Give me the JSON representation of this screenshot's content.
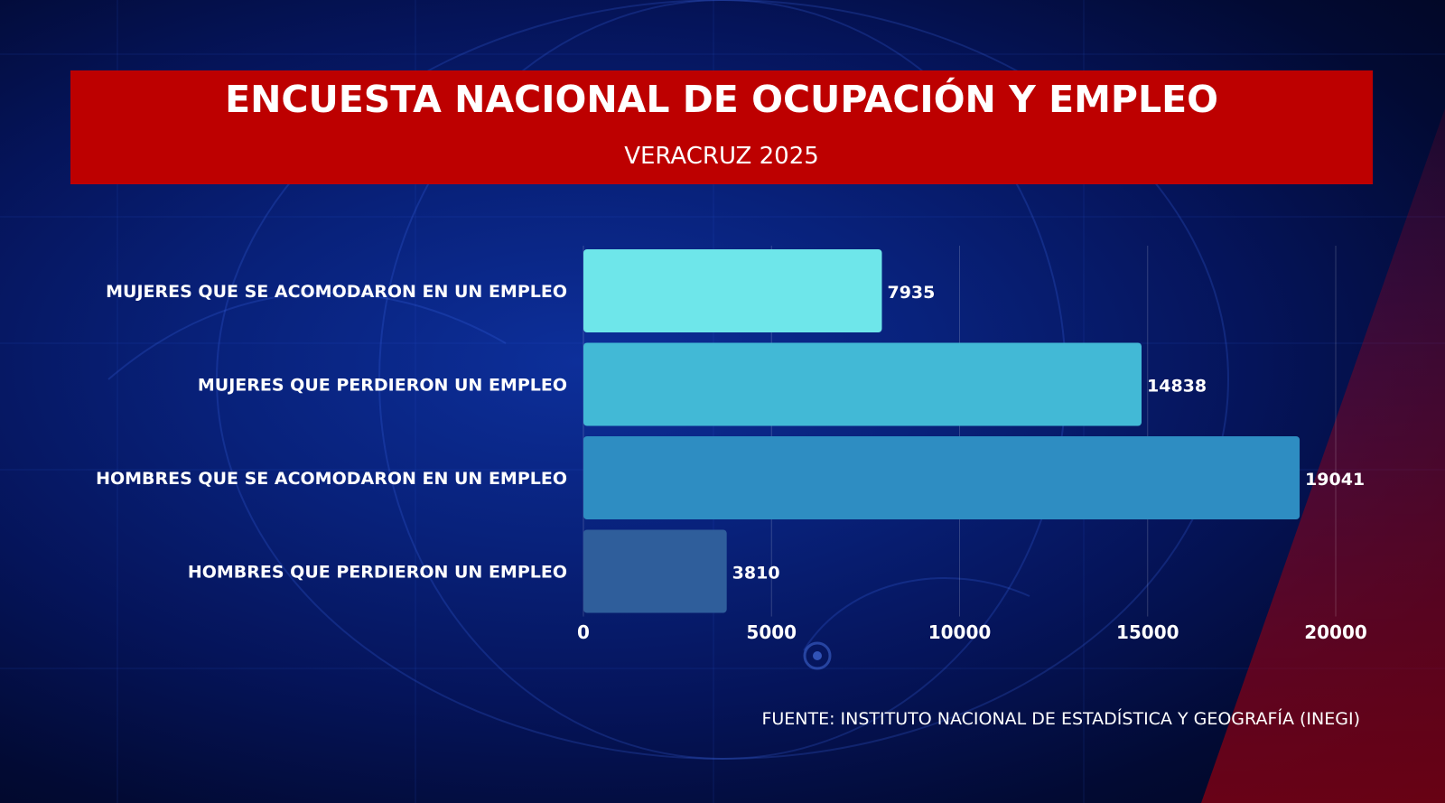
{
  "header": {
    "title": "ENCUESTA NACIONAL DE OCUPACIÓN Y EMPLEO",
    "subtitle": "VERACRUZ 2025"
  },
  "source": "FUENTE: INSTITUTO NACIONAL DE ESTADÍSTICA Y GEOGRAFÍA (INEGI)",
  "colors": {
    "header_bg": "#bd0000",
    "bars": [
      "#6ee6ea",
      "#42b9d6",
      "#2e8dc2",
      "#2f5e9b"
    ]
  },
  "chart_data": {
    "type": "bar",
    "orientation": "horizontal",
    "categories": [
      "MUJERES QUE SE ACOMODARON EN UN EMPLEO",
      "MUJERES QUE PERDIERON UN EMPLEO",
      "HOMBRES QUE SE ACOMODARON EN UN EMPLEO",
      "HOMBRES QUE PERDIERON UN EMPLEO"
    ],
    "values": [
      7935,
      14838,
      19041,
      3810
    ],
    "data_labels": [
      "7935",
      "14838",
      "19041",
      "3810"
    ],
    "xlim": [
      0,
      20000
    ],
    "x_ticks": [
      0,
      5000,
      10000,
      15000,
      20000
    ],
    "x_tick_labels": [
      "0",
      "5000",
      "10000",
      "15000",
      "20000"
    ],
    "grid": true,
    "title": "",
    "xlabel": "",
    "ylabel": ""
  }
}
